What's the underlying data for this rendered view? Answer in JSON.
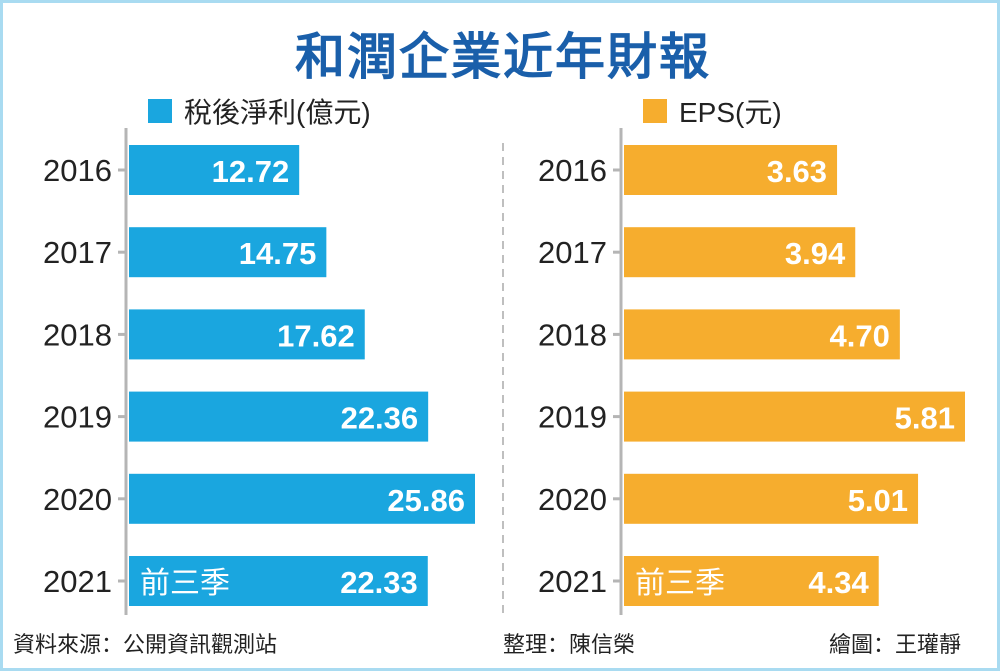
{
  "title": "和潤企業近年財報",
  "footer": {
    "source": "資料來源：公開資訊觀測站",
    "editor": "整理：陳信榮",
    "graphic": "繪圖：王瓘靜"
  },
  "chart_data": [
    {
      "type": "bar",
      "orientation": "horizontal",
      "legend": "稅後淨利(億元)",
      "color": "#1aa6df",
      "categories": [
        "2016",
        "2017",
        "2018",
        "2019",
        "2020",
        "2021"
      ],
      "values": [
        12.72,
        14.75,
        17.62,
        22.36,
        25.86,
        22.33
      ],
      "value_labels": [
        "12.72",
        "14.75",
        "17.62",
        "22.36",
        "25.86",
        "22.33"
      ],
      "annotations": {
        "2021": "前三季"
      },
      "xlim": [
        0,
        25.86
      ]
    },
    {
      "type": "bar",
      "orientation": "horizontal",
      "legend": "EPS(元)",
      "color": "#f6ad2e",
      "categories": [
        "2016",
        "2017",
        "2018",
        "2019",
        "2020",
        "2021"
      ],
      "values": [
        3.63,
        3.94,
        4.7,
        5.81,
        5.01,
        4.34
      ],
      "value_labels": [
        "3.63",
        "3.94",
        "4.70",
        "5.81",
        "5.01",
        "4.34"
      ],
      "annotations": {
        "2021": "前三季"
      },
      "xlim": [
        0,
        5.81
      ]
    }
  ]
}
